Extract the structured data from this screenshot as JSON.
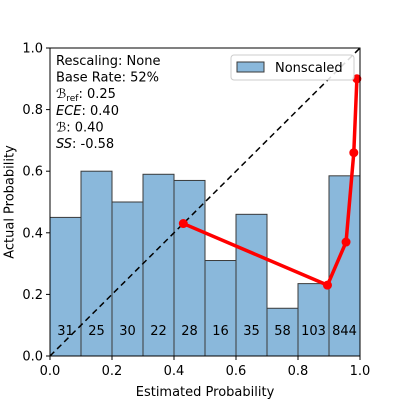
{
  "chart_data": {
    "type": "bar",
    "xlabel": "Estimated Probability",
    "ylabel": "Actual Probability",
    "xlim": [
      0,
      1
    ],
    "ylim": [
      0,
      1
    ],
    "xticks": [
      "0.0",
      "0.2",
      "0.4",
      "0.6",
      "0.8",
      "1.0"
    ],
    "yticks": [
      "0.0",
      "0.2",
      "0.4",
      "0.6",
      "0.8",
      "1.0"
    ],
    "legend": {
      "placement": "top-right",
      "entries": [
        "Nonscaled"
      ]
    },
    "annotations": [
      {
        "text": "Rescaling: None"
      },
      {
        "text": "Base Rate: 52%"
      },
      {
        "label": "ℬ",
        "sub": "ref",
        "value": ": 0.25"
      },
      {
        "label": "ECE",
        "value": ": 0.40"
      },
      {
        "label": "ℬ",
        "value": ": 0.40"
      },
      {
        "label": "SS",
        "value": ": -0.58"
      }
    ],
    "bins": [
      {
        "x0": 0.0,
        "x1": 0.1,
        "value": 0.45,
        "count": "31"
      },
      {
        "x0": 0.1,
        "x1": 0.2,
        "value": 0.6,
        "count": "25"
      },
      {
        "x0": 0.2,
        "x1": 0.3,
        "value": 0.5,
        "count": "30"
      },
      {
        "x0": 0.3,
        "x1": 0.4,
        "value": 0.59,
        "count": "22"
      },
      {
        "x0": 0.4,
        "x1": 0.5,
        "value": 0.57,
        "count": "28"
      },
      {
        "x0": 0.5,
        "x1": 0.6,
        "value": 0.31,
        "count": "16"
      },
      {
        "x0": 0.6,
        "x1": 0.7,
        "value": 0.46,
        "count": "35"
      },
      {
        "x0": 0.7,
        "x1": 0.8,
        "value": 0.155,
        "count": "58"
      },
      {
        "x0": 0.8,
        "x1": 0.9,
        "value": 0.235,
        "count": "103"
      },
      {
        "x0": 0.9,
        "x1": 1.0,
        "value": 0.585,
        "count": "844"
      }
    ],
    "calibration_curve": [
      {
        "x": 0.43,
        "y": 0.43
      },
      {
        "x": 0.895,
        "y": 0.23
      },
      {
        "x": 0.955,
        "y": 0.37
      },
      {
        "x": 0.98,
        "y": 0.66
      },
      {
        "x": 0.99,
        "y": 0.9
      }
    ],
    "diagonal": {
      "from": [
        0,
        0
      ],
      "to": [
        1,
        1
      ]
    },
    "colors": {
      "bar_fill": "#8ab8db",
      "bar_edge": "#3a3a3a",
      "curve": "#ff0000",
      "diagonal": "#000000"
    }
  }
}
